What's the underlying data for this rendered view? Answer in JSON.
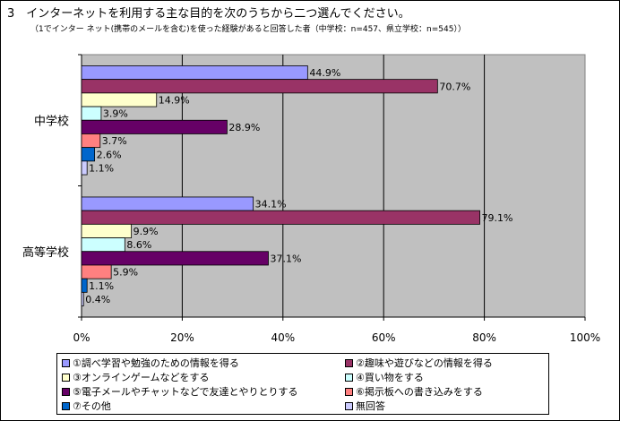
{
  "title": "3　インターネットを利用する主な目的を次のうちから二つ選んでください。",
  "subtitle": "（1でインター ネット(携帯のメールを含む)を使った経験があると回答した者（中学校：n=457、県立学校：n=545））",
  "chart_data": {
    "type": "bar",
    "orientation": "horizontal",
    "categories": [
      "中学校",
      "高等学校"
    ],
    "series": [
      {
        "name": "①調べ学習や勉強のための情報を得る",
        "color": "#9999ff",
        "values": [
          44.9,
          34.1
        ]
      },
      {
        "name": "②趣味や遊びなどの情報を得る",
        "color": "#993366",
        "values": [
          70.7,
          79.1
        ]
      },
      {
        "name": "③オンラインゲームなどをする",
        "color": "#ffffcc",
        "values": [
          14.9,
          9.9
        ]
      },
      {
        "name": "④買い物をする",
        "color": "#ccffff",
        "values": [
          3.9,
          8.6
        ]
      },
      {
        "name": "⑤電子メールやチャットなどで友達とやりとりする",
        "color": "#660066",
        "values": [
          28.9,
          37.1
        ]
      },
      {
        "name": "⑥掲示板への書き込みをする",
        "color": "#ff8080",
        "values": [
          3.7,
          5.9
        ]
      },
      {
        "name": "⑦その他",
        "color": "#0066cc",
        "values": [
          2.6,
          1.1
        ]
      },
      {
        "name": "無回答",
        "color": "#ccccff",
        "values": [
          1.1,
          0.4
        ]
      }
    ],
    "value_labels": [
      [
        "44.9%",
        "70.7%",
        "14.9%",
        "3.9%",
        "28.9%",
        "3.7%",
        "2.6%",
        "1.1%"
      ],
      [
        "34.1%",
        "79.1%",
        "9.9%",
        "8.6%",
        "37.1%",
        "5.9%",
        "1.1%",
        "0.4%"
      ]
    ],
    "xlim": [
      0,
      100
    ],
    "xticks": [
      "0%",
      "20%",
      "40%",
      "60%",
      "80%",
      "100%"
    ],
    "plot_background": "#c0c0c0",
    "grid": true,
    "legend_position": "bottom"
  }
}
